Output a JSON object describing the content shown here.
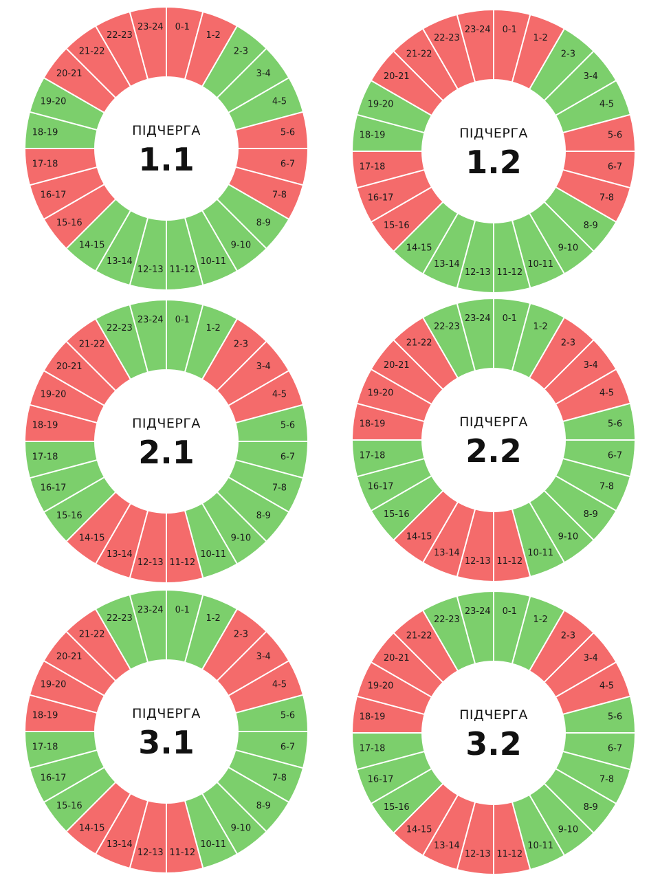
{
  "colors": {
    "on": "#7ccf6c",
    "off": "#f46b6b",
    "separator": "#ffffff",
    "center": "#ffffff"
  },
  "chart_data": [
    {
      "type": "pie",
      "center_label": "ПІДЧЕРГА",
      "title": "1.1",
      "categories": [
        "0-1",
        "1-2",
        "2-3",
        "3-4",
        "4-5",
        "5-6",
        "6-7",
        "7-8",
        "8-9",
        "9-10",
        "10-11",
        "11-12",
        "12-13",
        "13-14",
        "14-15",
        "15-16",
        "16-17",
        "17-18",
        "18-19",
        "19-20",
        "20-21",
        "21-22",
        "22-23",
        "23-24"
      ],
      "states": [
        "off",
        "off",
        "on",
        "on",
        "on",
        "off",
        "off",
        "off",
        "on",
        "on",
        "on",
        "on",
        "on",
        "on",
        "on",
        "off",
        "off",
        "off",
        "on",
        "on",
        "off",
        "off",
        "off",
        "off"
      ]
    },
    {
      "type": "pie",
      "center_label": "ПІДЧЕРГА",
      "title": "1.2",
      "categories": [
        "0-1",
        "1-2",
        "2-3",
        "3-4",
        "4-5",
        "5-6",
        "6-7",
        "7-8",
        "8-9",
        "9-10",
        "10-11",
        "11-12",
        "12-13",
        "13-14",
        "14-15",
        "15-16",
        "16-17",
        "17-18",
        "18-19",
        "19-20",
        "20-21",
        "21-22",
        "22-23",
        "23-24"
      ],
      "states": [
        "off",
        "off",
        "on",
        "on",
        "on",
        "off",
        "off",
        "off",
        "on",
        "on",
        "on",
        "on",
        "on",
        "on",
        "on",
        "off",
        "off",
        "off",
        "on",
        "on",
        "off",
        "off",
        "off",
        "off"
      ]
    },
    {
      "type": "pie",
      "center_label": "ПІДЧЕРГА",
      "title": "2.1",
      "categories": [
        "0-1",
        "1-2",
        "2-3",
        "3-4",
        "4-5",
        "5-6",
        "6-7",
        "7-8",
        "8-9",
        "9-10",
        "10-11",
        "11-12",
        "12-13",
        "13-14",
        "14-15",
        "15-16",
        "16-17",
        "17-18",
        "18-19",
        "19-20",
        "20-21",
        "21-22",
        "22-23",
        "23-24"
      ],
      "states": [
        "on",
        "on",
        "off",
        "off",
        "off",
        "on",
        "on",
        "on",
        "on",
        "on",
        "on",
        "off",
        "off",
        "off",
        "off",
        "on",
        "on",
        "on",
        "off",
        "off",
        "off",
        "off",
        "on",
        "on"
      ]
    },
    {
      "type": "pie",
      "center_label": "ПІДЧЕРГА",
      "title": "2.2",
      "categories": [
        "0-1",
        "1-2",
        "2-3",
        "3-4",
        "4-5",
        "5-6",
        "6-7",
        "7-8",
        "8-9",
        "9-10",
        "10-11",
        "11-12",
        "12-13",
        "13-14",
        "14-15",
        "15-16",
        "16-17",
        "17-18",
        "18-19",
        "19-20",
        "20-21",
        "21-22",
        "22-23",
        "23-24"
      ],
      "states": [
        "on",
        "on",
        "off",
        "off",
        "off",
        "on",
        "on",
        "on",
        "on",
        "on",
        "on",
        "off",
        "off",
        "off",
        "off",
        "on",
        "on",
        "on",
        "off",
        "off",
        "off",
        "off",
        "on",
        "on"
      ]
    },
    {
      "type": "pie",
      "center_label": "ПІДЧЕРГА",
      "title": "3.1",
      "categories": [
        "0-1",
        "1-2",
        "2-3",
        "3-4",
        "4-5",
        "5-6",
        "6-7",
        "7-8",
        "8-9",
        "9-10",
        "10-11",
        "11-12",
        "12-13",
        "13-14",
        "14-15",
        "15-16",
        "16-17",
        "17-18",
        "18-19",
        "19-20",
        "20-21",
        "21-22",
        "22-23",
        "23-24"
      ],
      "states": [
        "on",
        "on",
        "off",
        "off",
        "off",
        "on",
        "on",
        "on",
        "on",
        "on",
        "on",
        "off",
        "off",
        "off",
        "off",
        "on",
        "on",
        "on",
        "off",
        "off",
        "off",
        "off",
        "on",
        "on"
      ]
    },
    {
      "type": "pie",
      "center_label": "ПІДЧЕРГА",
      "title": "3.2",
      "categories": [
        "0-1",
        "1-2",
        "2-3",
        "3-4",
        "4-5",
        "5-6",
        "6-7",
        "7-8",
        "8-9",
        "9-10",
        "10-11",
        "11-12",
        "12-13",
        "13-14",
        "14-15",
        "15-16",
        "16-17",
        "17-18",
        "18-19",
        "19-20",
        "20-21",
        "21-22",
        "22-23",
        "23-24"
      ],
      "states": [
        "on",
        "on",
        "off",
        "off",
        "off",
        "on",
        "on",
        "on",
        "on",
        "on",
        "on",
        "off",
        "off",
        "off",
        "off",
        "on",
        "on",
        "on",
        "off",
        "off",
        "off",
        "off",
        "on",
        "on"
      ]
    }
  ]
}
